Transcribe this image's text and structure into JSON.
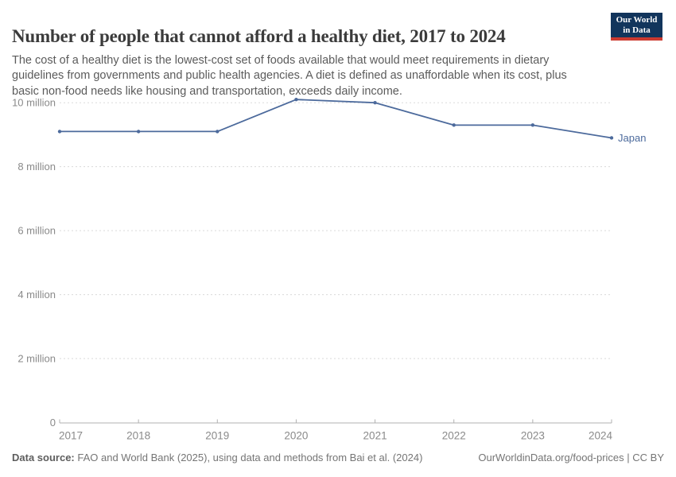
{
  "header": {
    "title": "Number of people that cannot afford a healthy diet, 2017 to 2024",
    "subtitle": "The cost of a healthy diet is the lowest-cost set of foods available that would meet requirements in dietary guidelines from governments and public health agencies. A diet is defined as unaffordable when its cost, plus basic non-food needs like housing and transportation, exceeds daily income.",
    "logo": {
      "line1": "Our World",
      "line2": "in Data",
      "bg_color": "#12355c",
      "stripe_color": "#cc3a30"
    }
  },
  "chart_data": {
    "type": "line",
    "title": "Number of people that cannot afford a healthy diet, 2017 to 2024",
    "x": [
      2017,
      2018,
      2019,
      2020,
      2021,
      2022,
      2023,
      2024
    ],
    "series": [
      {
        "name": "Japan",
        "values": [
          9.1,
          9.1,
          9.1,
          10.1,
          10.0,
          9.3,
          9.3,
          8.9
        ],
        "color": "#4C6A9C"
      }
    ],
    "unit": "people (million)",
    "ylim": [
      0,
      10.45
    ],
    "yticks": [
      {
        "value": 0,
        "label": "0"
      },
      {
        "value": 2,
        "label": "2 million"
      },
      {
        "value": 4,
        "label": "4 million"
      },
      {
        "value": 6,
        "label": "6 million"
      },
      {
        "value": 8,
        "label": "8 million"
      },
      {
        "value": 10,
        "label": "10 million"
      }
    ],
    "grid": "horizontal-dashed",
    "legend_position": "end-of-line",
    "entity_label": "Japan",
    "axis_colors": {
      "grid": "#dadada",
      "axis_line": "#b0b0b0",
      "tick_text": "#8a8a8a"
    }
  },
  "footer": {
    "source_label": "Data source:",
    "source_text": "FAO and World Bank (2025), using data and methods from Bai et al. (2024)",
    "link_text": "OurWorldinData.org/food-prices | CC BY"
  }
}
